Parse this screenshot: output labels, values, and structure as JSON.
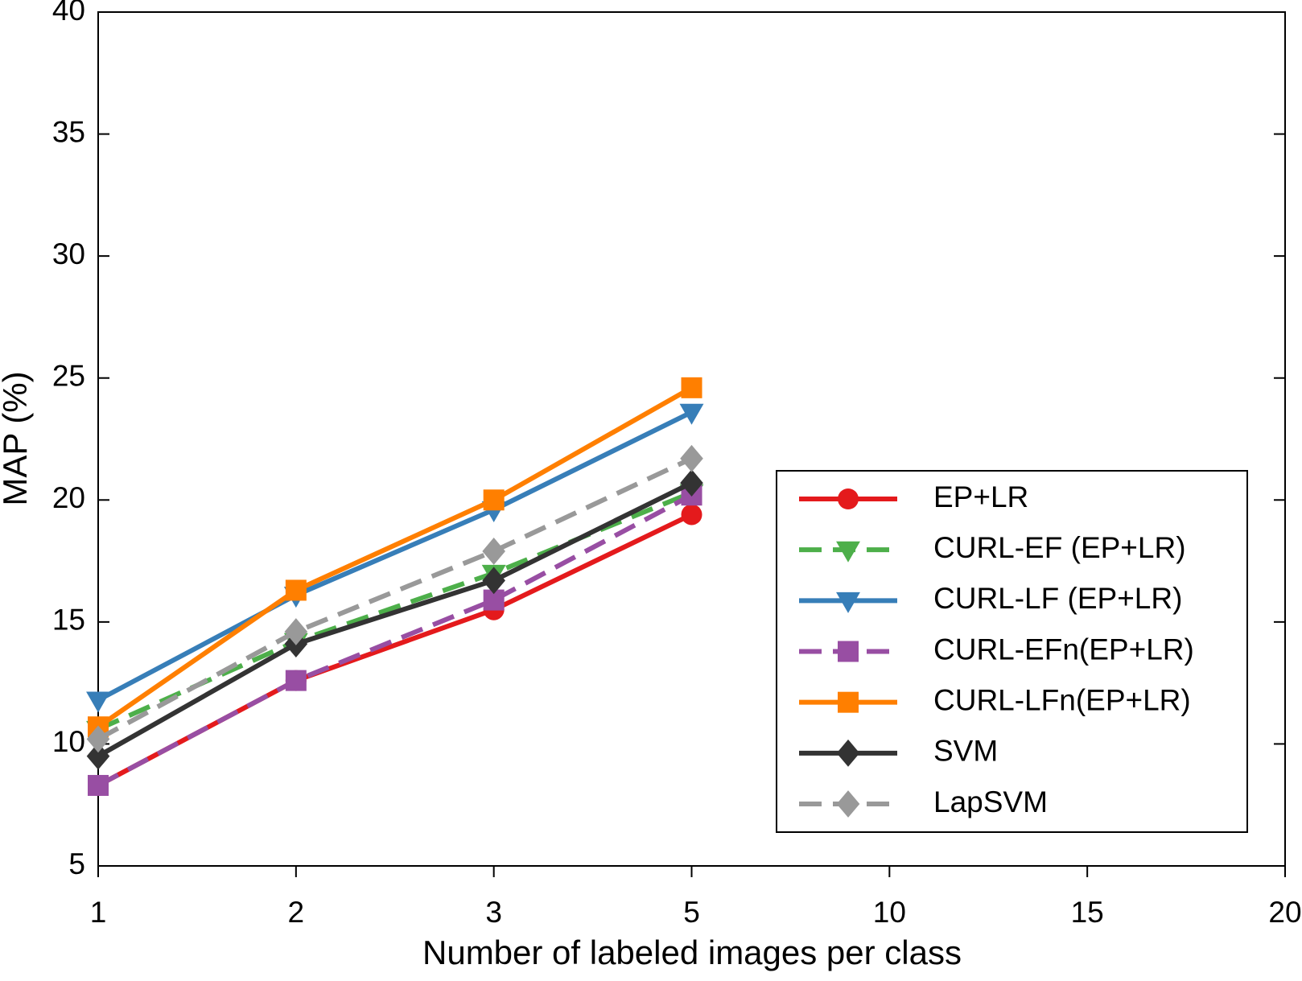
{
  "chart_data": {
    "type": "line",
    "xlabel": "Number of labeled images per class",
    "ylabel": "MAP (%)",
    "categories": [
      "1",
      "2",
      "3",
      "5",
      "10",
      "15",
      "20"
    ],
    "ylim": [
      5,
      40
    ],
    "yticks": [
      5,
      10,
      15,
      20,
      25,
      30,
      35,
      40
    ],
    "legend": "lower right",
    "series": [
      {
        "name": "EP+LR",
        "color": "#e41a1c",
        "dash": false,
        "marker": "circle",
        "values": [
          8.3,
          12.6,
          15.5,
          19.4,
          null,
          null,
          null
        ]
      },
      {
        "name": "CURL-EF (EP+LR)",
        "color": "#4daf4a",
        "dash": true,
        "marker": "triangle-down",
        "values": [
          10.6,
          14.2,
          17.0,
          20.3,
          null,
          null,
          null
        ]
      },
      {
        "name": "CURL-LF (EP+LR)",
        "color": "#377eb8",
        "dash": false,
        "marker": "triangle-down",
        "values": [
          11.8,
          16.1,
          19.6,
          23.6,
          null,
          null,
          null
        ]
      },
      {
        "name": "CURL-EFn(EP+LR)",
        "color": "#984ea3",
        "dash": true,
        "marker": "square",
        "values": [
          8.3,
          12.6,
          15.9,
          20.2,
          null,
          null,
          null
        ]
      },
      {
        "name": "CURL-LFn(EP+LR)",
        "color": "#ff7f00",
        "dash": false,
        "marker": "square",
        "values": [
          10.7,
          16.3,
          20.0,
          24.6,
          null,
          null,
          null
        ]
      },
      {
        "name": "SVM",
        "color": "#333333",
        "dash": false,
        "marker": "diamond",
        "values": [
          9.5,
          14.1,
          16.7,
          20.7,
          null,
          null,
          null
        ]
      },
      {
        "name": "LapSVM",
        "color": "#999999",
        "dash": true,
        "marker": "diamond",
        "values": [
          10.2,
          14.6,
          17.9,
          21.7,
          null,
          null,
          null
        ]
      }
    ]
  }
}
